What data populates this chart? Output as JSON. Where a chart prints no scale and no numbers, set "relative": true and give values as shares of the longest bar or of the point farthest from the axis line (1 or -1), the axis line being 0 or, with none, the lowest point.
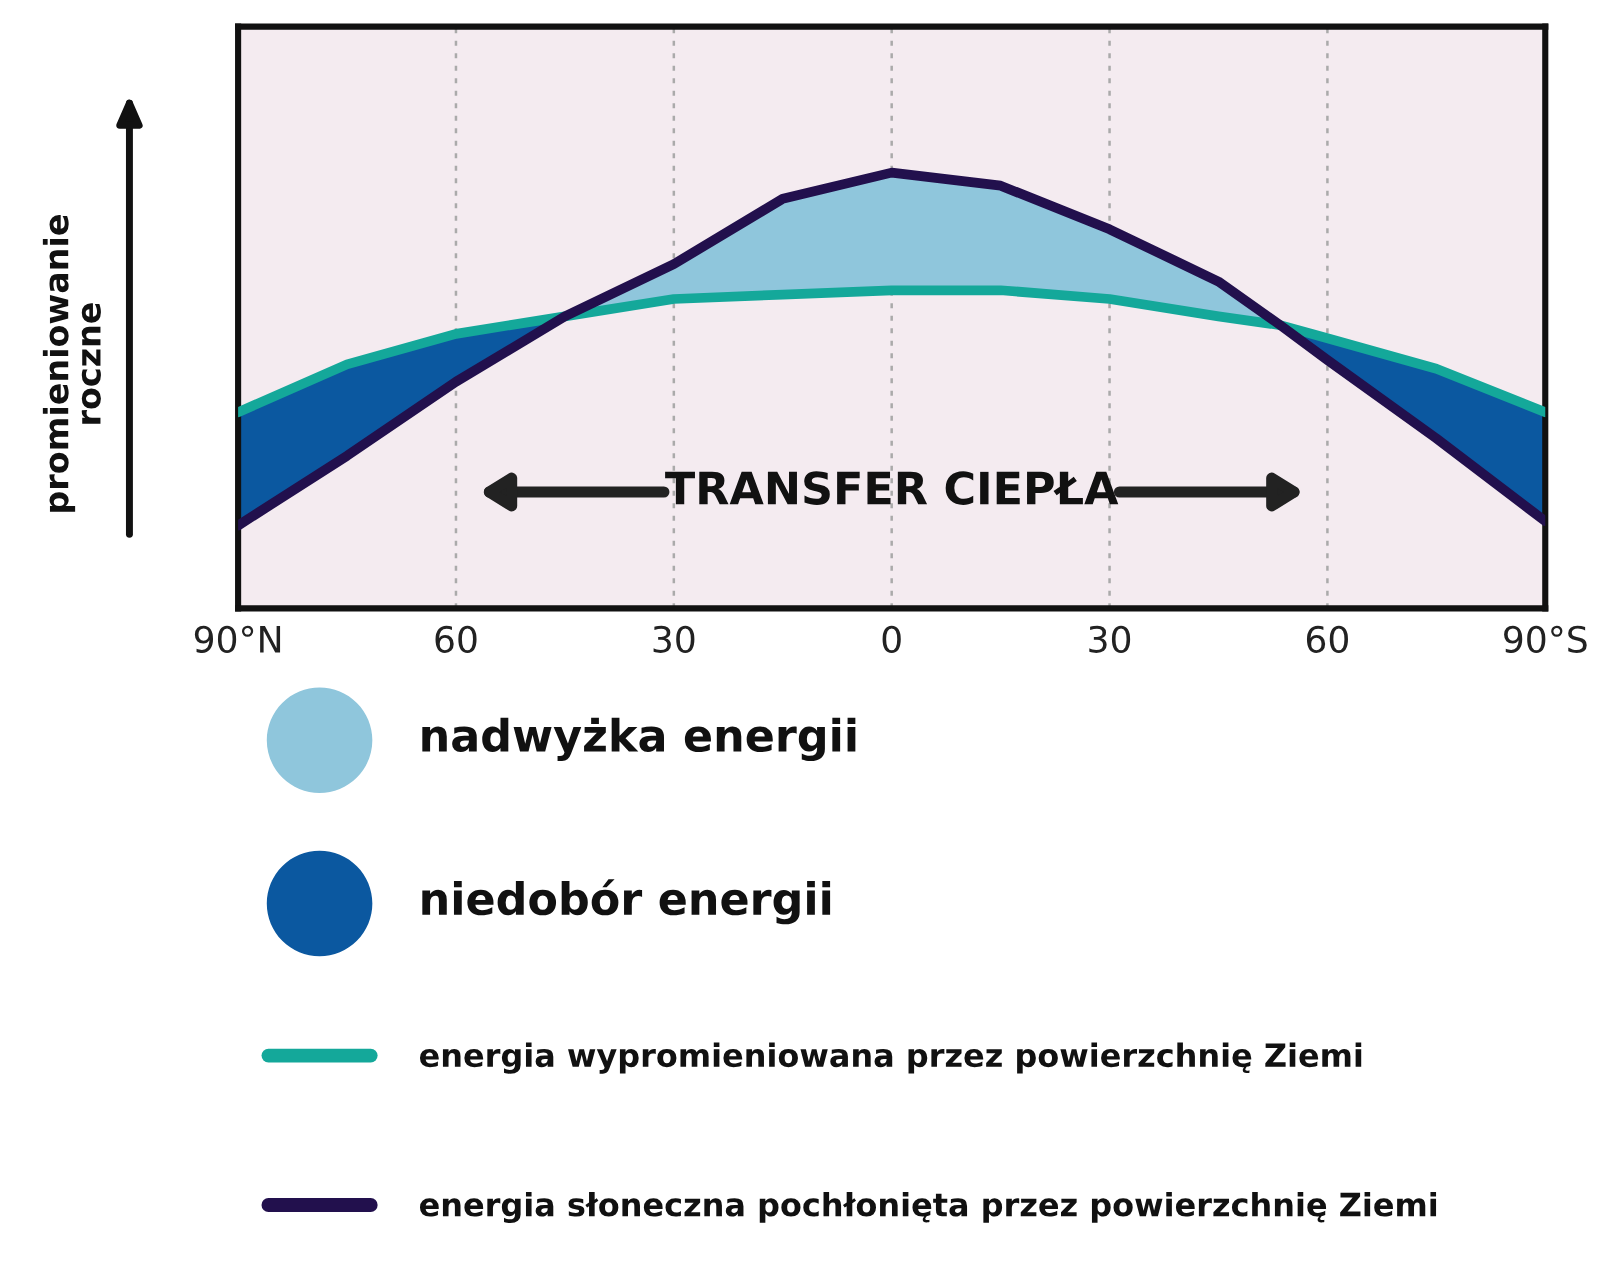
{
  "chart_data": {
    "type": "line",
    "relative": true,
    "ylabel": "promieniowanie\nroczne",
    "x": [
      90,
      75,
      60,
      45,
      30,
      15,
      0,
      -15,
      -30,
      -45,
      -53.5,
      -60,
      -75,
      -90
    ],
    "xlim": [
      90,
      -90
    ],
    "xticks": [
      {
        "value": 90,
        "label": "90°N"
      },
      60,
      30,
      0,
      {
        "value": -30,
        "label": "30"
      },
      {
        "value": -60,
        "label": "60"
      },
      {
        "value": -90,
        "label": "90°S"
      }
    ],
    "grid": "x",
    "legend": "bottom",
    "series": [
      {
        "name": "nadwyżka energii",
        "type": "area",
        "color": "#8fc6dc",
        "values": [
          null,
          null,
          null,
          0.67,
          0.79,
          0.94,
          1.0,
          0.97,
          0.87,
          0.75,
          0.65,
          null,
          null,
          null
        ]
      },
      {
        "name": "niedobór energii",
        "type": "area",
        "color": "#0b58a0",
        "values": [
          0.45,
          0.56,
          0.63,
          0.67,
          null,
          null,
          null,
          null,
          null,
          null,
          0.65,
          0.62,
          0.55,
          0.45
        ]
      },
      {
        "name": "energia wypromieniowana przez powierzchnię Ziemi",
        "color": "#14a89a",
        "values": [
          0.45,
          0.56,
          0.63,
          0.67,
          0.71,
          0.72,
          0.73,
          0.73,
          0.71,
          0.67,
          0.65,
          0.62,
          0.55,
          0.45
        ]
      },
      {
        "name": "energia słoneczna pochłonięta przez powierzchnię Ziemi",
        "color": "#22104d",
        "values": [
          0.19,
          0.35,
          0.52,
          0.67,
          0.79,
          0.94,
          1.0,
          0.97,
          0.87,
          0.75,
          0.65,
          0.57,
          0.39,
          0.2
        ]
      }
    ],
    "annotations": [
      "TRANSFER CIEPŁA"
    ]
  }
}
